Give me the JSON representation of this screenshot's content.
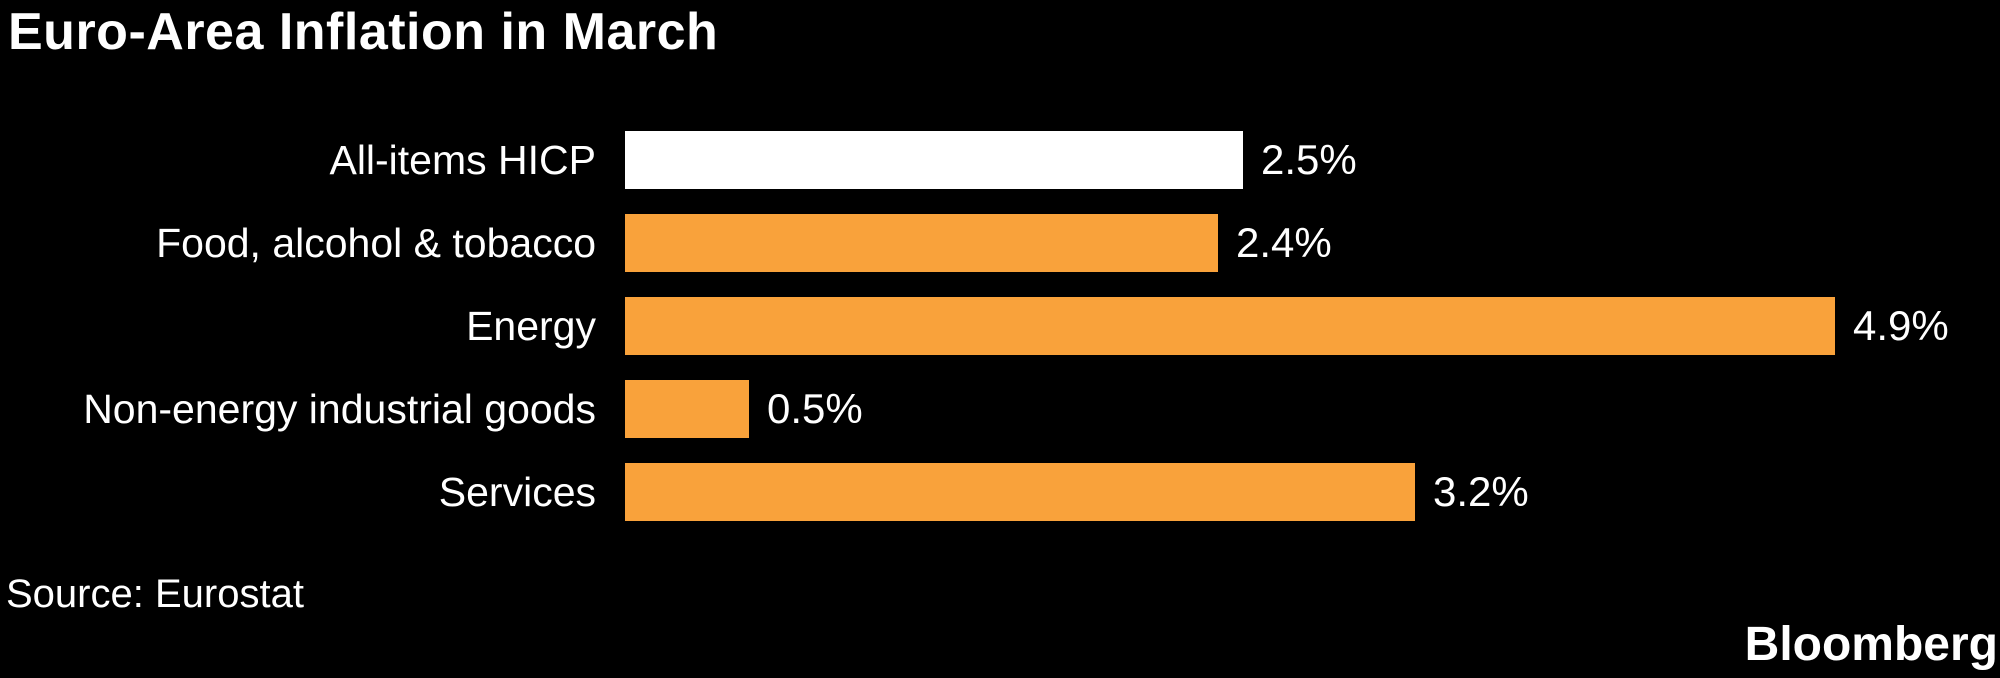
{
  "title": "Euro-Area Inflation in March",
  "source": "Source: Eurostat",
  "brand": "Bloomberg",
  "colors": {
    "background": "#000000",
    "text": "#FFFFFF",
    "bar_default": "#F9A23B",
    "bar_highlight": "#FFFFFF"
  },
  "chart_data": {
    "type": "bar",
    "orientation": "horizontal",
    "title": "Euro-Area Inflation in March",
    "xlabel": "",
    "ylabel": "",
    "unit": "%",
    "xlim": [
      0,
      5.5
    ],
    "grid": false,
    "legend": null,
    "categories": [
      "All-items HICP",
      "Food, alcohol & tobacco",
      "Energy",
      "Non-energy industrial goods",
      "Services"
    ],
    "values": [
      2.5,
      2.4,
      4.9,
      0.5,
      3.2
    ],
    "value_labels": [
      "2.5%",
      "2.4%",
      "4.9%",
      "0.5%",
      "3.2%"
    ],
    "bar_colors": [
      "#FFFFFF",
      "#F9A23B",
      "#F9A23B",
      "#F9A23B",
      "#F9A23B"
    ]
  }
}
